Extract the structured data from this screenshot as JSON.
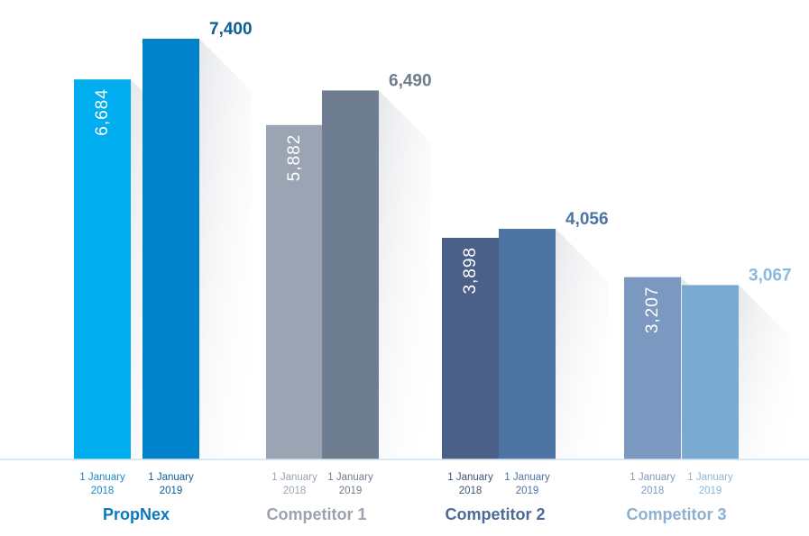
{
  "chart_data": {
    "type": "bar",
    "groups": [
      {
        "name": "PropNex",
        "label_color": "#0a78c0",
        "bars": [
          {
            "date_line1": "1 January",
            "date_line2": "2018",
            "value": 6684,
            "label": "6,684",
            "label_position": "inside",
            "color": "#00adee",
            "label_color": "#1a88c8"
          },
          {
            "date_line1": "1 January",
            "date_line2": "2019",
            "value": 7400,
            "label": "7,400",
            "label_position": "top",
            "color": "#0082cb",
            "label_color": "#0a5e94"
          }
        ]
      },
      {
        "name": "Competitor 1",
        "label_color": "#9ca3ad",
        "bars": [
          {
            "date_line1": "1 January",
            "date_line2": "2018",
            "value": 5882,
            "label": "5,882",
            "label_position": "inside",
            "color": "#9ba4b2",
            "label_color": "#9ba4b2"
          },
          {
            "date_line1": "1 January",
            "date_line2": "2019",
            "value": 6490,
            "label": "6,490",
            "label_position": "top",
            "color": "#6e7d90",
            "label_color": "#707d8c"
          }
        ]
      },
      {
        "name": "Competitor 2",
        "label_color": "#4a6b94",
        "bars": [
          {
            "date_line1": "1 January",
            "date_line2": "2018",
            "value": 3898,
            "label": "3,898",
            "label_position": "inside",
            "color": "#4b6089",
            "label_color": "#3e5578"
          },
          {
            "date_line1": "1 January",
            "date_line2": "2019",
            "value": 4056,
            "label": "4,056",
            "label_position": "top",
            "color": "#4d74a3",
            "label_color": "#4d74a3"
          }
        ]
      },
      {
        "name": "Competitor 3",
        "label_color": "#8cb0cf",
        "bars": [
          {
            "date_line1": "1 January",
            "date_line2": "2018",
            "value": 3207,
            "label": "3,207",
            "label_position": "inside",
            "color": "#7b99c0",
            "label_color": "#7b99c0"
          },
          {
            "date_line1": "1 January",
            "date_line2": "2019",
            "value": 3067,
            "label": "3,067",
            "label_position": "top",
            "color": "#7aaad0",
            "label_color": "#8cb8da"
          }
        ]
      }
    ],
    "title": "",
    "xlabel": "",
    "ylabel": "",
    "ylim": [
      0,
      8000
    ],
    "grid": false,
    "legend": "none",
    "baseline_color": "#cfe2f1"
  }
}
